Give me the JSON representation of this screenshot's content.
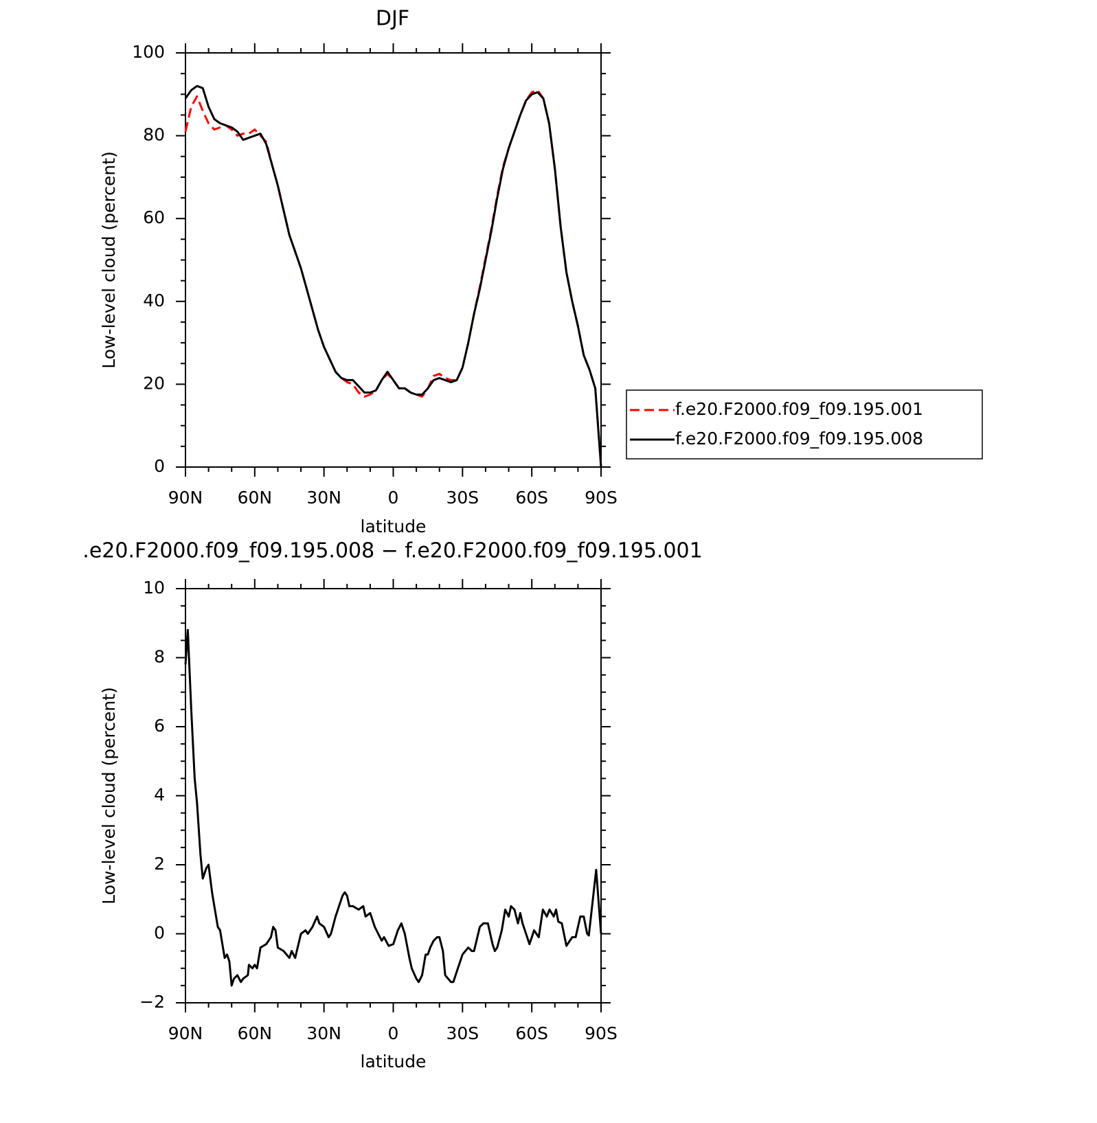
{
  "chart_data": [
    {
      "type": "line",
      "title": "DJF",
      "xlabel": "latitude",
      "ylabel": "Low-level cloud (percent)",
      "xlim": [
        90,
        -90
      ],
      "ylim": [
        0,
        100
      ],
      "xticks": [
        {
          "value": 90,
          "label": "90N"
        },
        {
          "value": 60,
          "label": "60N"
        },
        {
          "value": 30,
          "label": "30N"
        },
        0,
        {
          "value": -30,
          "label": "30S"
        },
        {
          "value": -60,
          "label": "60S"
        },
        {
          "value": -90,
          "label": "90S"
        }
      ],
      "xminorticks": [
        80,
        70,
        50,
        40,
        20,
        10,
        -10,
        -20,
        -40,
        -50,
        -70,
        -80
      ],
      "yticks": [
        0,
        20,
        40,
        60,
        80,
        100
      ],
      "yminorticks": [
        5,
        10,
        15,
        25,
        30,
        35,
        45,
        50,
        55,
        65,
        70,
        75,
        85,
        90,
        95
      ],
      "legend": "right",
      "x": [
        90,
        87.5,
        85,
        82.5,
        80,
        77.5,
        75,
        72.5,
        70,
        67.5,
        65,
        62.5,
        60,
        57.5,
        55,
        52.5,
        50,
        47.5,
        45,
        42.5,
        40,
        37.5,
        35,
        32.5,
        30,
        27.5,
        25,
        22.5,
        20,
        17.5,
        15,
        12.5,
        10,
        7.5,
        5,
        2.5,
        0,
        -2.5,
        -5,
        -7.5,
        -10,
        -12.5,
        -15,
        -17.5,
        -20,
        -22.5,
        -25,
        -27.5,
        -30,
        -32.5,
        -35,
        -37.5,
        -40,
        -42.5,
        -45,
        -47.5,
        -50,
        -52.5,
        -55,
        -57.5,
        -60,
        -62.5,
        -65,
        -67.5,
        -70,
        -72.5,
        -75,
        -77.5,
        -80,
        -82.5,
        -85,
        -87.5,
        -90
      ],
      "series": [
        {
          "name": "f.e20.F2000.f09_f09.195.001",
          "color": "#ff0000",
          "dash": true,
          "values": [
            81,
            87,
            89.5,
            86,
            83,
            81.5,
            82,
            82.5,
            81.5,
            80,
            80.5,
            80.5,
            81.5,
            80,
            78.5,
            73,
            68,
            62,
            56,
            52,
            48,
            43,
            38,
            33,
            29,
            26,
            23,
            21.5,
            20.5,
            20,
            18,
            17,
            17.5,
            18.5,
            21,
            22.5,
            21,
            19,
            19,
            18,
            17.5,
            17,
            19,
            22,
            22.5,
            21.5,
            21,
            21,
            24,
            30,
            37,
            43.5,
            50.5,
            57.5,
            65.5,
            72.5,
            77,
            81,
            85,
            88.5,
            90.5,
            91,
            89,
            83,
            72,
            58,
            47,
            40,
            34,
            27,
            23.5,
            19,
            0
          ]
        },
        {
          "name": "f.e20.F2000.f09_f09.195.008",
          "color": "#000000",
          "dash": false,
          "values": [
            89,
            91,
            92,
            91.5,
            87,
            84,
            83,
            82.5,
            82,
            81,
            79,
            79.5,
            80,
            80.5,
            78,
            73,
            68,
            62,
            56,
            52,
            48,
            43,
            38,
            33,
            29,
            26,
            23,
            21.5,
            21,
            21,
            19.5,
            18,
            18,
            18.5,
            21,
            23,
            21,
            19,
            19,
            18,
            17.5,
            17.5,
            19,
            21,
            21.5,
            21,
            20.5,
            21,
            24,
            30,
            37,
            43,
            50,
            57,
            65,
            72,
            77,
            81,
            85,
            88.5,
            90,
            90.5,
            89,
            83,
            72,
            58,
            47,
            40,
            34,
            27,
            23.5,
            19,
            0
          ]
        }
      ]
    },
    {
      "type": "line",
      "title": ".e20.F2000.f09_f09.195.008 − f.e20.F2000.f09_f09.195.001",
      "xlabel": "latitude",
      "ylabel": "Low-level cloud (percent)",
      "xlim": [
        90,
        -90
      ],
      "ylim": [
        -2,
        10
      ],
      "xticks": [
        {
          "value": 90,
          "label": "90N"
        },
        {
          "value": 60,
          "label": "60N"
        },
        {
          "value": 30,
          "label": "30N"
        },
        0,
        {
          "value": -30,
          "label": "30S"
        },
        {
          "value": -60,
          "label": "60S"
        },
        {
          "value": -90,
          "label": "90S"
        }
      ],
      "xminorticks": [
        80,
        70,
        50,
        40,
        20,
        10,
        -10,
        -20,
        -40,
        -50,
        -70,
        -80
      ],
      "yticks": [
        {
          "value": -2,
          "label": "−2"
        },
        0,
        2,
        4,
        6,
        8,
        10
      ],
      "yminorticks": [
        -1.5,
        -1,
        -0.5,
        0.5,
        1,
        1.5,
        2.5,
        3,
        3.5,
        4.5,
        5,
        5.5,
        6.5,
        7,
        7.5,
        8.5,
        9,
        9.5
      ],
      "x": [
        90,
        89,
        87.5,
        86,
        85,
        83.5,
        82.5,
        81,
        80,
        78.5,
        77.5,
        76,
        75,
        73,
        72,
        71,
        70,
        69,
        67.5,
        66,
        65,
        63,
        62.5,
        61,
        60,
        59,
        57.5,
        55,
        53,
        52,
        51,
        50,
        47.5,
        45,
        44,
        42.5,
        40,
        38,
        37,
        35,
        33,
        32,
        30,
        28,
        27,
        25,
        22,
        21,
        20,
        19,
        17.5,
        15,
        13,
        12,
        10,
        8,
        5,
        4,
        2,
        0,
        -2,
        -3.5,
        -5,
        -7,
        -8,
        -10,
        -11,
        -12.5,
        -14,
        -15,
        -16,
        -17.5,
        -19,
        -20,
        -21.5,
        -22.5,
        -25,
        -26,
        -27.5,
        -30,
        -32.5,
        -34,
        -35,
        -37.5,
        -39,
        -41,
        -43,
        -44,
        -45,
        -47,
        -48.5,
        -50,
        -51,
        -52.5,
        -54,
        -55,
        -56,
        -57.5,
        -59,
        -60,
        -61,
        -62,
        -63,
        -64.8,
        -66.5,
        -67.7,
        -69.5,
        -70.5,
        -71.5,
        -73,
        -75,
        -77.5,
        -79,
        -81,
        -82.5,
        -84,
        -84.7,
        -87.9,
        -90
      ],
      "series": [
        {
          "color": "#000000",
          "values": [
            7.8,
            8.8,
            6.5,
            4.5,
            3.8,
            2.3,
            1.6,
            1.9,
            2.0,
            1.2,
            0.8,
            0.2,
            0.1,
            -0.7,
            -0.6,
            -0.8,
            -1.5,
            -1.3,
            -1.2,
            -1.4,
            -1.3,
            -1.2,
            -0.9,
            -1.0,
            -0.9,
            -1.0,
            -0.4,
            -0.3,
            -0.1,
            0.2,
            0.1,
            -0.4,
            -0.5,
            -0.7,
            -0.5,
            -0.7,
            0.0,
            0.1,
            0.0,
            0.2,
            0.5,
            0.3,
            0.2,
            -0.1,
            0.0,
            0.5,
            1.1,
            1.2,
            1.1,
            0.8,
            0.8,
            0.7,
            0.8,
            0.5,
            0.6,
            0.2,
            -0.2,
            -0.1,
            -0.35,
            -0.3,
            0.1,
            0.3,
            0.0,
            -0.7,
            -1.0,
            -1.3,
            -1.4,
            -1.2,
            -0.6,
            -0.6,
            -0.4,
            -0.2,
            -0.1,
            -0.1,
            -0.5,
            -1.2,
            -1.4,
            -1.4,
            -1.1,
            -0.6,
            -0.4,
            -0.5,
            -0.5,
            0.2,
            0.3,
            0.3,
            -0.3,
            -0.5,
            -0.4,
            0.1,
            0.7,
            0.5,
            0.8,
            0.7,
            0.3,
            0.6,
            0.3,
            0.0,
            -0.3,
            -0.1,
            0.1,
            0.0,
            -0.1,
            0.7,
            0.5,
            0.7,
            0.5,
            0.7,
            0.35,
            0.3,
            -0.35,
            -0.1,
            -0.1,
            0.5,
            0.5,
            0.0,
            -0.05,
            1.85,
            0.0
          ]
        }
      ]
    }
  ]
}
